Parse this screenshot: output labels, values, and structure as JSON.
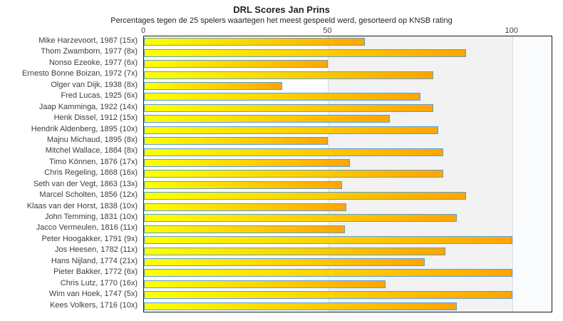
{
  "title": "DRL Scores Jan Prins",
  "subtitle": "Percentages tegen de 25 spelers waartegen het meest gespeeld werd, gesorteerd op KNSB rating",
  "chart_data": {
    "type": "bar",
    "orientation": "horizontal",
    "title": "DRL Scores Jan Prins",
    "subtitle": "Percentages tegen de 25 spelers waartegen het meest gespeeld werd, gesorteerd op KNSB rating",
    "xlabel": "",
    "ylabel": "",
    "xlim": [
      0,
      110.7
    ],
    "xticks": [
      0,
      50,
      100
    ],
    "gridlines": [
      50,
      100
    ],
    "legend": "none",
    "categories": [
      "Mike Harzevoort, 1987 (15x)",
      "Thom Zwamborn, 1977 (8x)",
      "Nonso Ezeoke, 1977 (6x)",
      "Ernesto Bonne Boizan, 1972 (7x)",
      "Olger van Dijk, 1938 (8x)",
      "Fred Lucas, 1925 (6x)",
      "Jaap Kamminga, 1922 (14x)",
      "Henk Dissel, 1912 (15x)",
      "Hendrik Aldenberg, 1895 (10x)",
      "Majnu Michaud, 1895 (8x)",
      "Mitchel Wallace, 1884 (8x)",
      "Timo Können, 1876 (17x)",
      "Chris Regeling, 1868 (16x)",
      "Seth van der Vegt, 1863 (13x)",
      "Marcel Scholten, 1856 (12x)",
      "Klaas van der Horst, 1838 (10x)",
      "John Temming, 1831 (10x)",
      "Jacco Vermeulen, 1816 (11x)",
      "Peter Hoogakker, 1791 (9x)",
      "Jos Heesen, 1782 (11x)",
      "Hans Nijland, 1774 (21x)",
      "Pieter Bakker, 1772 (6x)",
      "Chris Lutz, 1770 (16x)",
      "Wim van Hoek, 1747 (5x)",
      "Kees Volkers, 1716 (10x)"
    ],
    "values": [
      60,
      87.5,
      50,
      78.6,
      37.5,
      75,
      78.6,
      66.7,
      80,
      50,
      81.3,
      55.9,
      81.3,
      53.8,
      87.5,
      55,
      85,
      54.5,
      100,
      81.8,
      76.2,
      100,
      65.6,
      100,
      85
    ],
    "bands": [
      {
        "from": 0,
        "to": 50,
        "color": "#ffffff"
      },
      {
        "from": 50,
        "to": 100,
        "color": "#f2f2f2"
      },
      {
        "from": 100,
        "to": 110.7,
        "color": "#fafbfd"
      }
    ],
    "bar_fill_gradient": [
      "#feff00",
      "#ffa500"
    ],
    "bar_border_color": "#5b9fd8",
    "gridline_color": "#dcdcdc",
    "plot_border_color": "#1a1a1a"
  }
}
